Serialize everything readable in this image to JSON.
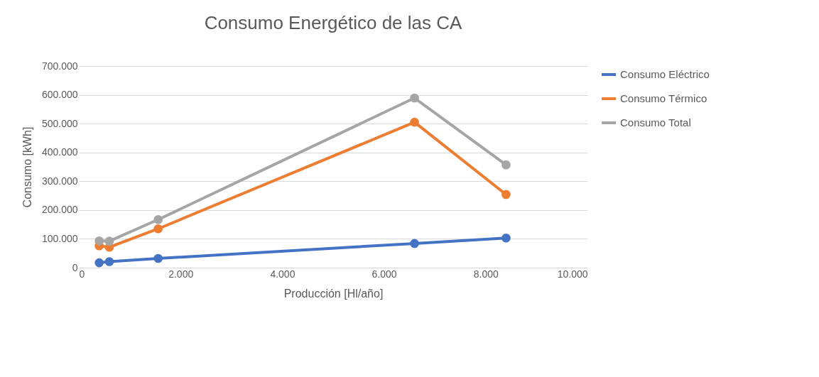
{
  "chart_data": {
    "type": "line",
    "title": "Consumo Energético de las CA",
    "xlabel": "Producción [Hl/año]",
    "ylabel": "Consumo [kWh]",
    "x": [
      400,
      600,
      1560,
      6600,
      8400
    ],
    "series": [
      {
        "name": "Consumo Eléctrico",
        "color": "#4472c4",
        "values": [
          17000,
          21000,
          32000,
          84000,
          103000
        ]
      },
      {
        "name": "Consumo Térmico",
        "color": "#ed7d31",
        "values": [
          76000,
          71000,
          135000,
          505000,
          254000
        ]
      },
      {
        "name": "Consumo Total",
        "color": "#a5a5a5",
        "values": [
          93000,
          92000,
          167000,
          589000,
          357000
        ]
      }
    ],
    "xlim": [
      0,
      10000
    ],
    "xticks": [
      0,
      {
        "value": 2000,
        "label": "2.000"
      },
      {
        "value": 4000,
        "label": "4.000"
      },
      {
        "value": 6000,
        "label": "6.000"
      },
      {
        "value": 8000,
        "label": "8.000"
      },
      {
        "value": 10000,
        "label": "10.000"
      }
    ],
    "ylim": [
      0,
      700000
    ],
    "yticks": [
      0,
      {
        "value": 100000,
        "label": "100.000"
      },
      {
        "value": 200000,
        "label": "200.000"
      },
      {
        "value": 300000,
        "label": "300.000"
      },
      {
        "value": 400000,
        "label": "400.000"
      },
      {
        "value": 500000,
        "label": "500.000"
      },
      {
        "value": 600000,
        "label": "600.000"
      },
      {
        "value": 700000,
        "label": "700.000"
      }
    ],
    "grid": "y",
    "legend": "right",
    "marker": "circle",
    "line_style": "solid"
  }
}
